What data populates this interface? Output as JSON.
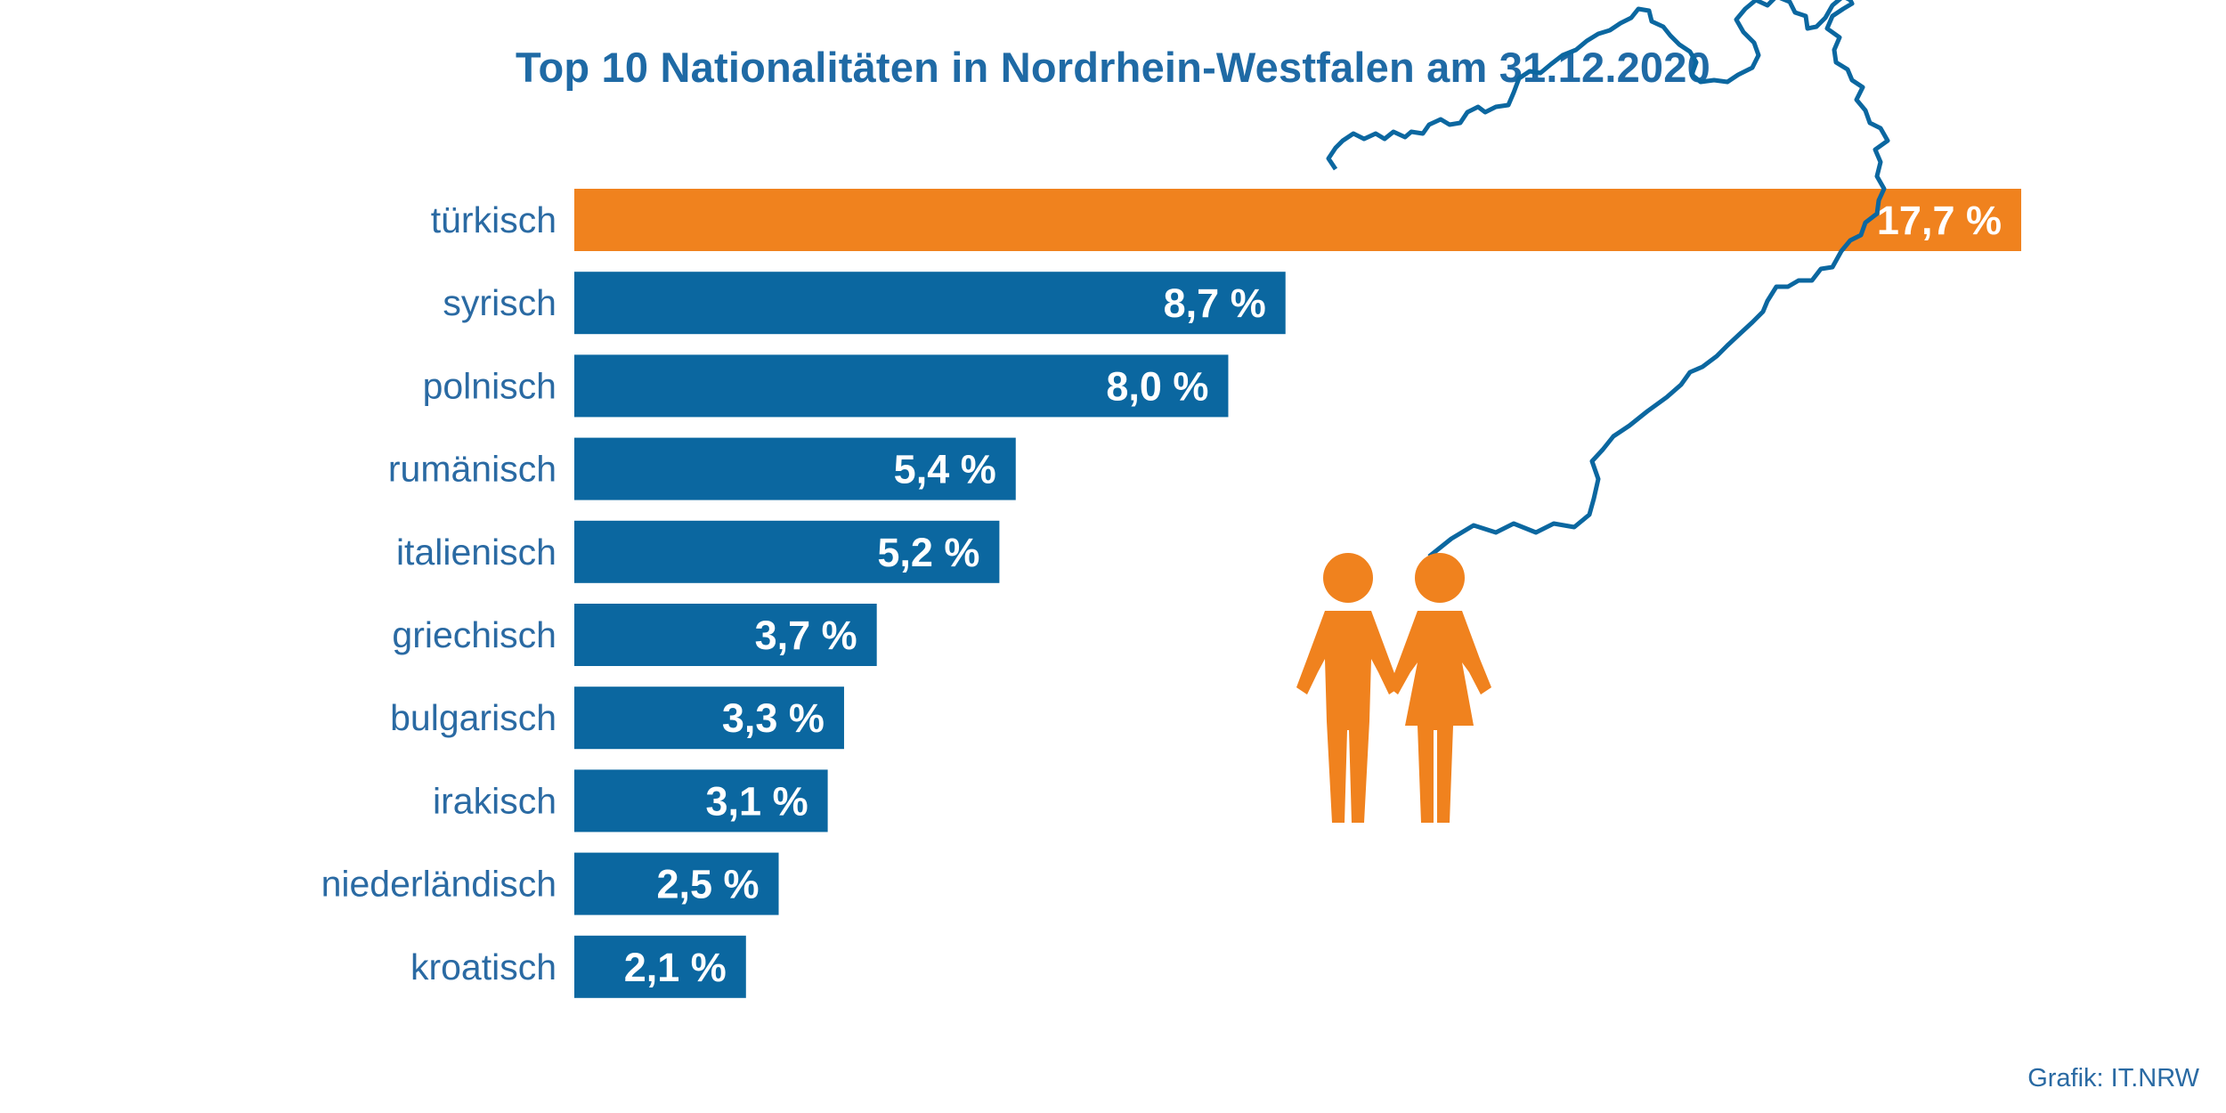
{
  "chart_data": {
    "type": "bar",
    "orientation": "horizontal",
    "title": "Top 10 Nationalitäten in Nordrhein-Westfalen am 31.12.2020",
    "categories": [
      "türkisch",
      "syrisch",
      "polnisch",
      "rumänisch",
      "italienisch",
      "griechisch",
      "bulgarisch",
      "irakisch",
      "niederländisch",
      "kroatisch"
    ],
    "values": [
      17.7,
      8.7,
      8.0,
      5.4,
      5.2,
      3.7,
      3.3,
      3.1,
      2.5,
      2.1
    ],
    "value_labels": [
      "17,7 %",
      "8,7 %",
      "8,0 %",
      "5,4 %",
      "5,2 %",
      "3,7 %",
      "3,3 %",
      "3,1 %",
      "2,5 %",
      "2,1 %"
    ],
    "unit": "%",
    "xlim": [
      0,
      17.7
    ],
    "grid": false,
    "highlight_color": "#f0821e",
    "bar_color": "#0b67a0"
  },
  "decoration": {
    "icon_names": [
      "people-icon",
      "nrw-map-outline"
    ],
    "icon_color": "#f0821e",
    "map_color": "#0b67a0"
  },
  "source": "Grafik: IT.NRW"
}
